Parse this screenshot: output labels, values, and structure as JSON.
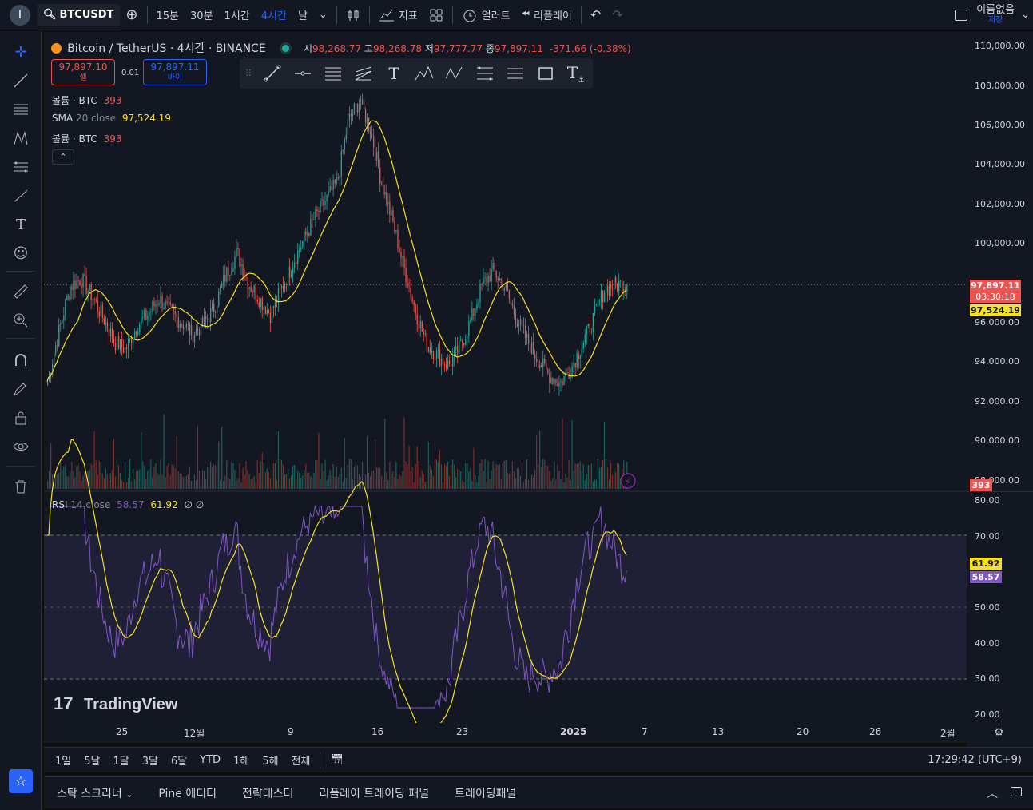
{
  "topbar": {
    "avatar_letter": "I",
    "symbol": "BTCUSDT",
    "intervals": [
      "15분",
      "30분",
      "1시간",
      "4시간",
      "날"
    ],
    "active_interval": "4시간",
    "indicators_label": "지표",
    "alert_label": "얼러트",
    "replay_label": "리플레이",
    "layout_name": "이름없음",
    "layout_save": "저장"
  },
  "legend": {
    "title": "Bitcoin / TetherUS · 4시간 · BINANCE",
    "o_label": "시",
    "o": "98,268.77",
    "h_label": "고",
    "h": "98,268.78",
    "l_label": "저",
    "l": "97,777.77",
    "c_label": "종",
    "c": "97,897.11",
    "chg": "-371.66 (-0.38%)",
    "sell_price": "97,897.10",
    "sell_label": "셀",
    "spread": "0.01",
    "buy_price": "97,897.11",
    "buy_label": "바이",
    "vol1_name": "볼륨 · BTC",
    "vol1_val": "393",
    "sma_name": "SMA",
    "sma_params": "20 close",
    "sma_val": "97,524.19",
    "vol2_name": "볼륨 · BTC",
    "vol2_val": "393",
    "rsi_name": "RSI",
    "rsi_params": "14 close",
    "rsi_val": "58.57",
    "rsi_sma": "61.92",
    "rsi_extra": "∅ ∅"
  },
  "price_axis": [
    "110,000.00",
    "108,000.00",
    "106,000.00",
    "104,000.00",
    "102,000.00",
    "100,000.00",
    "96,000.00",
    "94,000.00",
    "92,000.00",
    "90,000.00",
    "88,000.00"
  ],
  "price_tags": {
    "last": "97,897.11",
    "countdown": "03:30:18",
    "sma": "97,524.19",
    "volume": "393"
  },
  "rsi_axis": [
    "80.00",
    "70.00",
    "50.00",
    "40.00",
    "30.00",
    "20.00"
  ],
  "rsi_tags": {
    "sma": "61.92",
    "rsi": "58.57"
  },
  "time_axis": [
    "25",
    "12월",
    "9",
    "16",
    "23",
    "2025",
    "7",
    "13",
    "20",
    "26",
    "2월"
  ],
  "ranges": [
    "1일",
    "5날",
    "1달",
    "3달",
    "6달",
    "YTD",
    "1해",
    "5해",
    "전체"
  ],
  "clock": "17:29:42 (UTC+9)",
  "bottom_tabs": [
    "스탁 스크리너",
    "Pine 에디터",
    "전략테스터",
    "리플레이 트레이딩 패널",
    "트레이딩패널"
  ],
  "watermark": "TradingView",
  "colors": {
    "up": "#26a69a",
    "down": "#ef5350",
    "sma": "#f7e11f",
    "rsi": "#7e57c2",
    "accent": "#2962ff"
  },
  "chart_data": {
    "type": "candlestick",
    "price_range": [
      88000,
      110000
    ],
    "sma_period": 20,
    "close_path": [
      93000,
      95500,
      97800,
      98200,
      97300,
      96200,
      95000,
      94600,
      95800,
      96400,
      97200,
      96500,
      96000,
      95400,
      95900,
      96800,
      98400,
      99500,
      98000,
      97200,
      96400,
      97700,
      99000,
      100200,
      101300,
      102200,
      103100,
      106200,
      107200,
      105700,
      103000,
      101000,
      98700,
      96600,
      94900,
      94300,
      93800,
      94700,
      96100,
      97900,
      98600,
      97800,
      96300,
      95100,
      94100,
      93300,
      92900,
      93700,
      94900,
      96200,
      97700,
      97900,
      97897
    ]
  }
}
